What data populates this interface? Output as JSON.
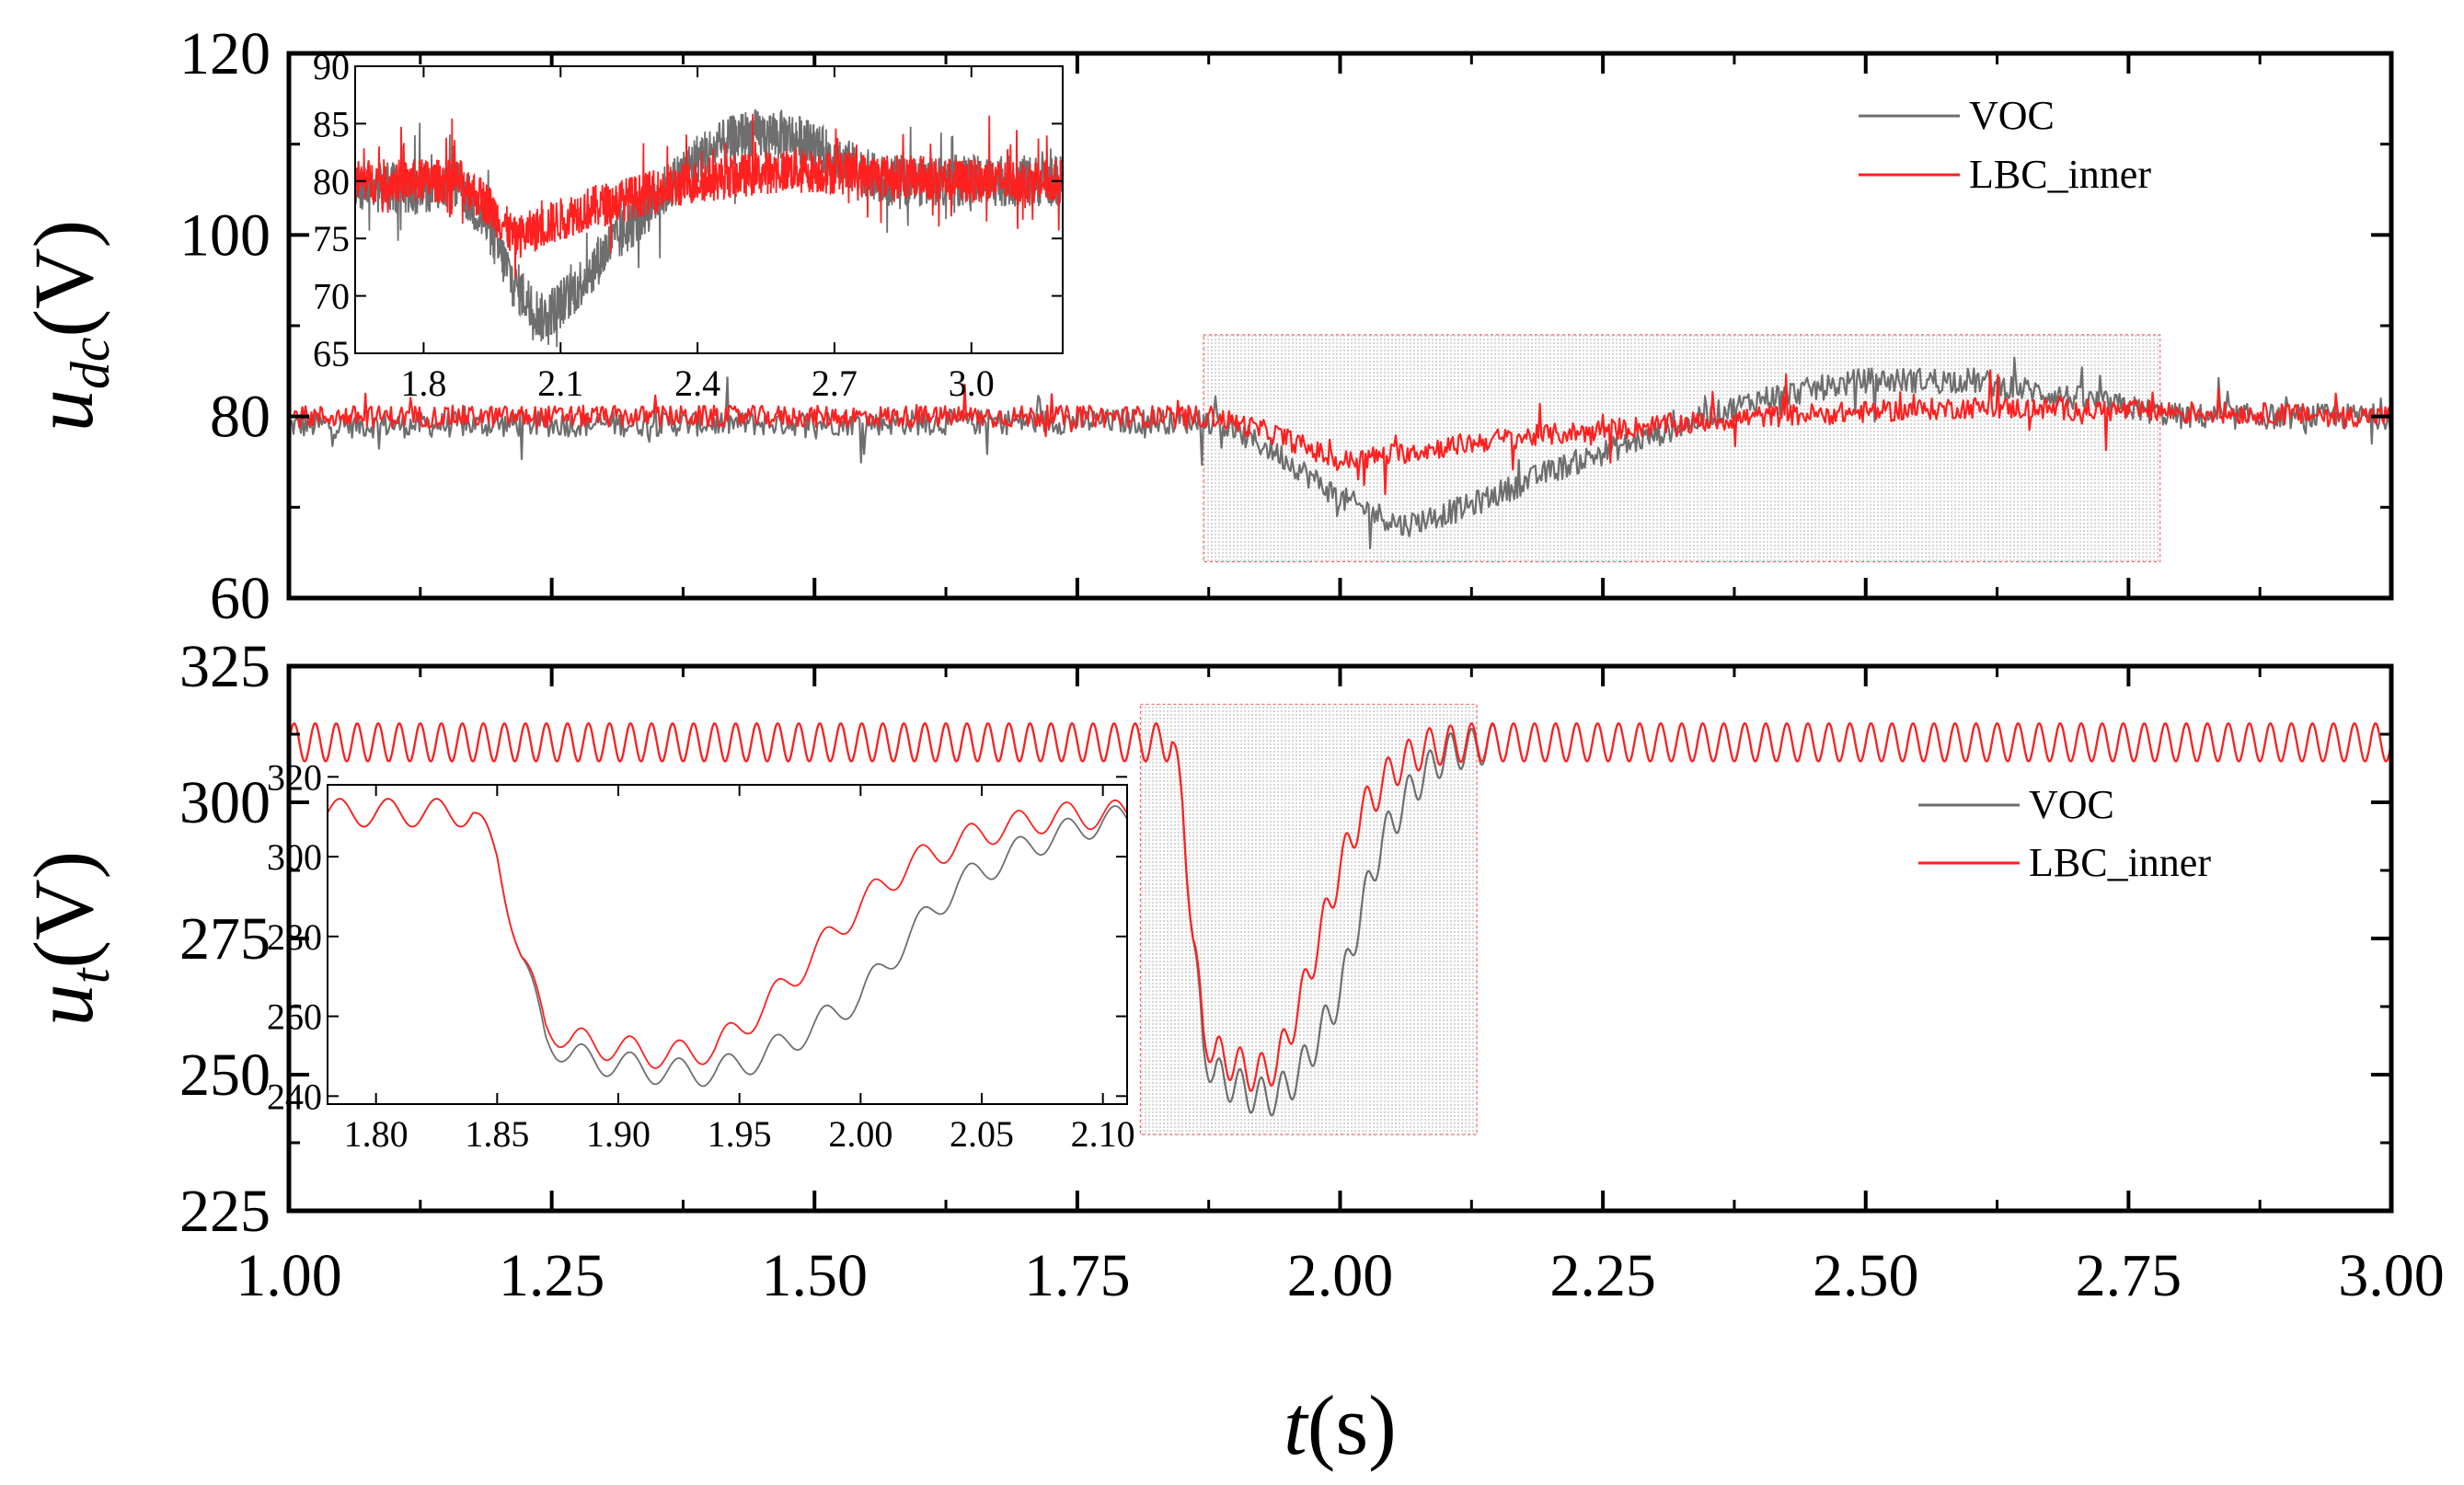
{
  "chart_data": [
    {
      "type": "line",
      "name": "udc-panel",
      "ylabel_main": "u",
      "ylabel_sub": "dc",
      "ylabel_unit": "(V)",
      "xlim": [
        1.0,
        3.0
      ],
      "ylim": [
        60,
        120
      ],
      "yticks": [
        "60",
        "80",
        "100",
        "120"
      ],
      "legend_position": "top-right",
      "series": [
        {
          "name": "VOC",
          "color": "#6e6e6e",
          "noise": 1.4,
          "points": [
            [
              1.0,
              79
            ],
            [
              1.84,
              79.5
            ],
            [
              1.88,
              79.5
            ],
            [
              1.94,
              76
            ],
            [
              2.0,
              71
            ],
            [
              2.06,
              68
            ],
            [
              2.12,
              70
            ],
            [
              2.2,
              74
            ],
            [
              2.3,
              78
            ],
            [
              2.4,
              82
            ],
            [
              2.5,
              84
            ],
            [
              2.6,
              84
            ],
            [
              2.7,
              82
            ],
            [
              2.8,
              80
            ],
            [
              3.0,
              80
            ]
          ]
        },
        {
          "name": "LBC_inner",
          "color": "#ff2020",
          "noise": 1.2,
          "points": [
            [
              1.0,
              80
            ],
            [
              1.88,
              80
            ],
            [
              1.94,
              78
            ],
            [
              2.0,
              75
            ],
            [
              2.06,
              76
            ],
            [
              2.15,
              77.5
            ],
            [
              2.25,
              78.5
            ],
            [
              2.4,
              80
            ],
            [
              2.6,
              81
            ],
            [
              2.8,
              80.5
            ],
            [
              3.0,
              80
            ]
          ]
        }
      ],
      "inset": {
        "xlim": [
          1.65,
          3.2
        ],
        "ylim": [
          65,
          90
        ],
        "xticks": [
          "1.8",
          "2.1",
          "2.4",
          "2.7",
          "3.0"
        ],
        "yticks": [
          "65",
          "70",
          "75",
          "80",
          "85",
          "90"
        ],
        "zoom_region": {
          "x": [
            1.87,
            2.78
          ],
          "y": [
            64,
            89
          ]
        }
      }
    },
    {
      "type": "line",
      "name": "ut-panel",
      "ylabel_main": "u",
      "ylabel_sub": "t",
      "ylabel_unit": "(V)",
      "xlim": [
        1.0,
        3.0
      ],
      "ylim": [
        225,
        325
      ],
      "yticks": [
        "225",
        "250",
        "275",
        "300",
        "325"
      ],
      "xticks": [
        "1.00",
        "1.25",
        "1.50",
        "1.75",
        "2.00",
        "2.25",
        "2.50",
        "2.75",
        "3.00"
      ],
      "xlabel_main": "t",
      "xlabel_unit": "(s)",
      "legend_position": "middle-right",
      "series": [
        {
          "name": "VOC",
          "color": "#6e6e6e",
          "ripple": 3.5,
          "points": [
            [
              1.0,
              311
            ],
            [
              1.84,
              311
            ],
            [
              1.85,
              300
            ],
            [
              1.86,
              275
            ],
            [
              1.87,
              255
            ],
            [
              1.88,
              250
            ],
            [
              1.9,
              248
            ],
            [
              1.92,
              246
            ],
            [
              1.94,
              246
            ],
            [
              1.96,
              250
            ],
            [
              1.98,
              257
            ],
            [
              2.0,
              265
            ],
            [
              2.02,
              280
            ],
            [
              2.04,
              293
            ],
            [
              2.07,
              303
            ],
            [
              2.1,
              309
            ],
            [
              2.15,
              311
            ],
            [
              3.0,
              311
            ]
          ]
        },
        {
          "name": "LBC_inner",
          "color": "#ff2020",
          "ripple": 3.5,
          "points": [
            [
              1.0,
              311
            ],
            [
              1.84,
              311
            ],
            [
              1.85,
              300
            ],
            [
              1.86,
              275
            ],
            [
              1.87,
              258
            ],
            [
              1.88,
              254
            ],
            [
              1.9,
              252
            ],
            [
              1.92,
              250
            ],
            [
              1.94,
              252
            ],
            [
              1.96,
              262
            ],
            [
              1.98,
              275
            ],
            [
              2.0,
              288
            ],
            [
              2.02,
              298
            ],
            [
              2.05,
              306
            ],
            [
              2.08,
              310
            ],
            [
              2.12,
              311
            ],
            [
              3.0,
              311
            ]
          ]
        }
      ],
      "inset": {
        "xlim": [
          1.78,
          2.11
        ],
        "ylim": [
          238,
          318
        ],
        "xticks": [
          "1.80",
          "1.85",
          "1.90",
          "1.95",
          "2.00",
          "2.05",
          "2.10"
        ],
        "yticks": [
          "240",
          "260",
          "280",
          "300",
          "320"
        ],
        "zoom_region": {
          "x": [
            1.81,
            2.13
          ],
          "y": [
            239,
            318
          ]
        }
      }
    }
  ]
}
